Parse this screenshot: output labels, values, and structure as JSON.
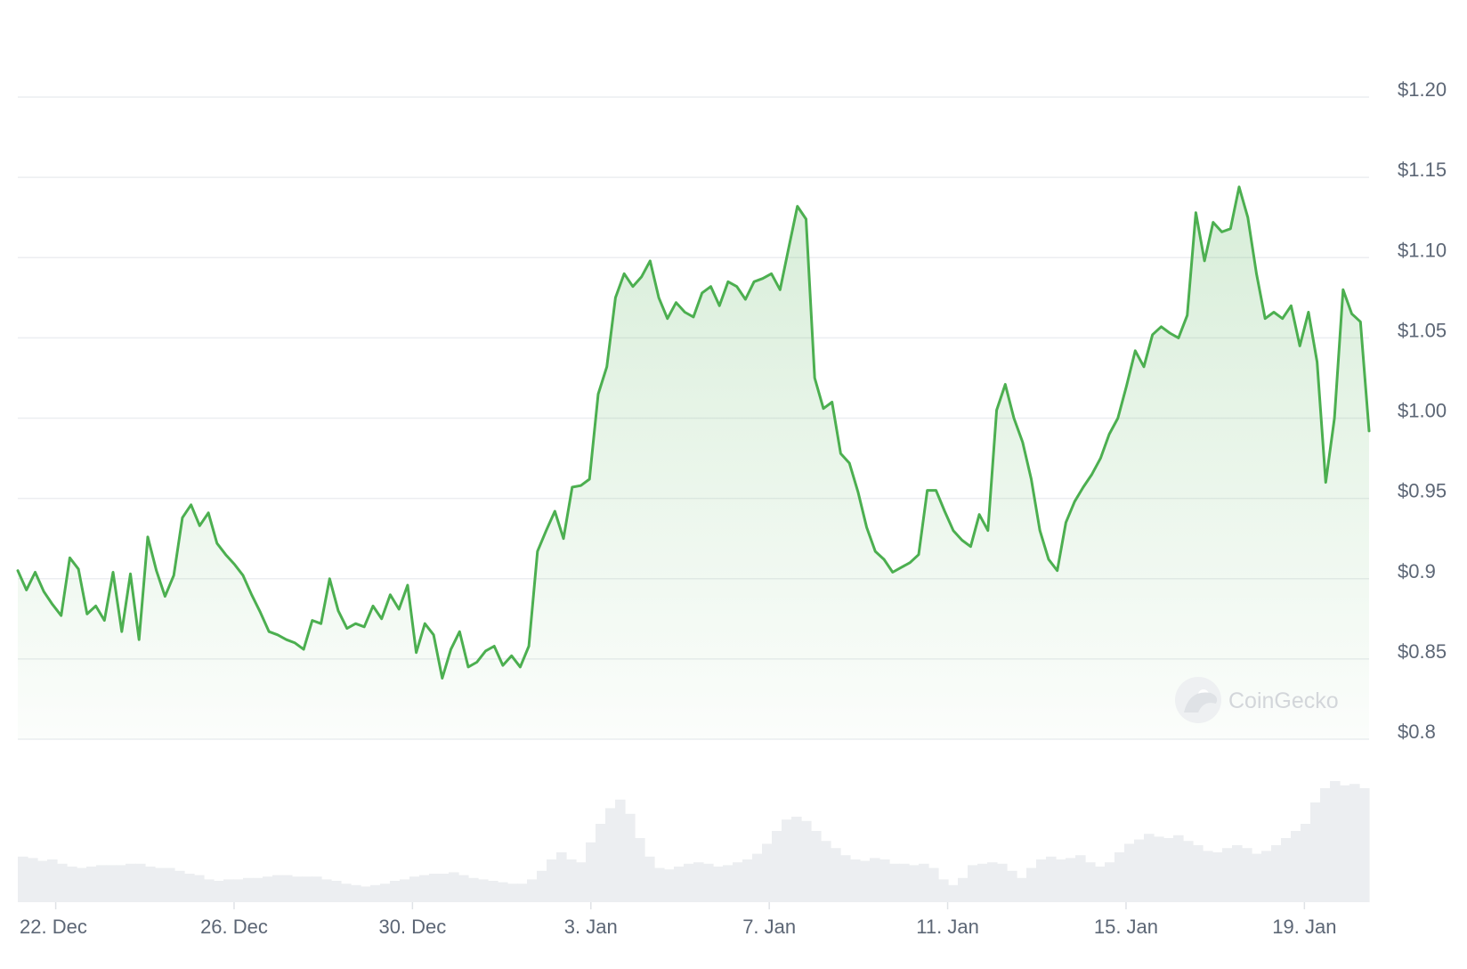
{
  "chart_data": {
    "type": "line",
    "title": "",
    "xlabel": "",
    "ylabel": "",
    "x_ticks": [
      "22. Dec",
      "26. Dec",
      "30. Dec",
      "3. Jan",
      "7. Jan",
      "11. Jan",
      "15. Jan",
      "19. Jan"
    ],
    "y_ticks": [
      "$1.20",
      "$1.15",
      "$1.10",
      "$1.05",
      "$1.00",
      "$0.95",
      "$0.9",
      "$0.85",
      "$0.8"
    ],
    "ylim": [
      0.8,
      1.2
    ],
    "x_range": [
      "21. Dec",
      "20. Jan"
    ],
    "grid": true,
    "legend": "none",
    "line_color": "#4caf50",
    "fill_color": "#4caf50",
    "series": [
      {
        "values": [
          0.905,
          0.893,
          0.904,
          0.892,
          0.884,
          0.877,
          0.913,
          0.906,
          0.878,
          0.883,
          0.874,
          0.904,
          0.867,
          0.903,
          0.862,
          0.926,
          0.905,
          0.889,
          0.902,
          0.938,
          0.946,
          0.933,
          0.941,
          0.922,
          0.915,
          0.909,
          0.902,
          0.89,
          0.879,
          0.867,
          0.865,
          0.862,
          0.86,
          0.856,
          0.874,
          0.872,
          0.9,
          0.88,
          0.869,
          0.872,
          0.87,
          0.883,
          0.875,
          0.89,
          0.881,
          0.896,
          0.854,
          0.872,
          0.865,
          0.838,
          0.856,
          0.867,
          0.845,
          0.848,
          0.855,
          0.858,
          0.846,
          0.852,
          0.845,
          0.858,
          0.917,
          0.93,
          0.942,
          0.925,
          0.957,
          0.958,
          0.962,
          1.015,
          1.032,
          1.075,
          1.09,
          1.082,
          1.088,
          1.098,
          1.075,
          1.062,
          1.072,
          1.066,
          1.063,
          1.078,
          1.082,
          1.07,
          1.085,
          1.082,
          1.074,
          1.085,
          1.087,
          1.09,
          1.08,
          1.106,
          1.132,
          1.124,
          1.025,
          1.006,
          1.01,
          0.978,
          0.972,
          0.954,
          0.932,
          0.917,
          0.912,
          0.904,
          0.907,
          0.91,
          0.915,
          0.955,
          0.955,
          0.942,
          0.93,
          0.924,
          0.92,
          0.94,
          0.93,
          1.005,
          1.021,
          1.0,
          0.985,
          0.962,
          0.93,
          0.912,
          0.905,
          0.935,
          0.948,
          0.957,
          0.965,
          0.975,
          0.99,
          1.0,
          1.02,
          1.042,
          1.032,
          1.052,
          1.057,
          1.053,
          1.05,
          1.064,
          1.128,
          1.098,
          1.122,
          1.116,
          1.118,
          1.144,
          1.125,
          1.09,
          1.062,
          1.066,
          1.062,
          1.07,
          1.045,
          1.066,
          1.035,
          0.96,
          1.0,
          1.08,
          1.065,
          1.06,
          0.992
        ]
      }
    ],
    "volume": {
      "values": [
        0.32,
        0.31,
        0.29,
        0.3,
        0.27,
        0.25,
        0.24,
        0.25,
        0.26,
        0.26,
        0.26,
        0.27,
        0.27,
        0.25,
        0.24,
        0.24,
        0.22,
        0.2,
        0.19,
        0.16,
        0.15,
        0.16,
        0.16,
        0.17,
        0.17,
        0.18,
        0.19,
        0.19,
        0.18,
        0.18,
        0.18,
        0.16,
        0.15,
        0.13,
        0.12,
        0.11,
        0.12,
        0.13,
        0.15,
        0.16,
        0.18,
        0.19,
        0.2,
        0.2,
        0.21,
        0.19,
        0.17,
        0.16,
        0.15,
        0.14,
        0.13,
        0.13,
        0.16,
        0.22,
        0.3,
        0.35,
        0.3,
        0.28,
        0.42,
        0.55,
        0.66,
        0.72,
        0.62,
        0.45,
        0.32,
        0.24,
        0.23,
        0.25,
        0.27,
        0.28,
        0.27,
        0.25,
        0.26,
        0.28,
        0.3,
        0.34,
        0.41,
        0.5,
        0.58,
        0.6,
        0.57,
        0.5,
        0.43,
        0.38,
        0.33,
        0.3,
        0.29,
        0.31,
        0.3,
        0.27,
        0.27,
        0.26,
        0.27,
        0.24,
        0.16,
        0.12,
        0.17,
        0.26,
        0.27,
        0.28,
        0.27,
        0.22,
        0.17,
        0.24,
        0.3,
        0.32,
        0.3,
        0.31,
        0.33,
        0.28,
        0.25,
        0.28,
        0.35,
        0.41,
        0.44,
        0.48,
        0.46,
        0.45,
        0.47,
        0.43,
        0.4,
        0.36,
        0.35,
        0.38,
        0.4,
        0.38,
        0.34,
        0.36,
        0.4,
        0.45,
        0.5,
        0.55,
        0.7,
        0.8,
        0.85,
        0.82,
        0.83,
        0.8
      ]
    }
  },
  "watermark": "CoinGecko"
}
